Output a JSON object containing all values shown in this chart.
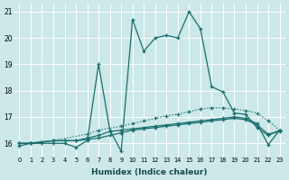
{
  "xlabel": "Humidex (Indice chaleur)",
  "background_color": "#cce8e8",
  "grid_color": "#ffffff",
  "line_color": "#1a6e6e",
  "xlim": [
    -0.5,
    23.5
  ],
  "ylim": [
    15.5,
    21.3
  ],
  "yticks": [
    16,
    17,
    18,
    19,
    20,
    21
  ],
  "xticks": [
    0,
    1,
    2,
    3,
    4,
    5,
    6,
    7,
    8,
    9,
    10,
    11,
    12,
    13,
    14,
    15,
    16,
    17,
    18,
    19,
    20,
    21,
    22,
    23
  ],
  "series": [
    {
      "x": [
        0,
        1,
        2,
        3,
        4,
        5,
        6,
        7,
        8,
        9,
        10,
        11,
        12,
        13,
        14,
        15,
        16,
        17,
        18,
        19,
        20,
        21,
        22,
        23
      ],
      "y": [
        16.0,
        16.0,
        16.0,
        16.0,
        16.0,
        15.85,
        16.1,
        19.0,
        16.5,
        15.7,
        20.7,
        19.5,
        20.0,
        20.1,
        20.0,
        21.0,
        20.35,
        18.15,
        17.95,
        17.15,
        17.1,
        16.6,
        16.3,
        16.5
      ],
      "style": "-",
      "marker": "+"
    },
    {
      "x": [
        0,
        3,
        6,
        7,
        9,
        10,
        11,
        12,
        13,
        14,
        15,
        16,
        17,
        18,
        19,
        20,
        21,
        22,
        23
      ],
      "y": [
        16.0,
        16.1,
        16.35,
        16.5,
        16.65,
        16.75,
        16.85,
        16.95,
        17.05,
        17.1,
        17.2,
        17.3,
        17.35,
        17.35,
        17.3,
        17.25,
        17.15,
        16.85,
        16.5
      ],
      "style": ":",
      "marker": "+"
    },
    {
      "x": [
        0,
        1,
        2,
        3,
        4,
        5,
        6,
        7,
        8,
        9,
        10,
        11,
        12,
        13,
        14,
        15,
        16,
        17,
        18,
        19,
        20,
        21,
        22,
        23
      ],
      "y": [
        16.0,
        16.0,
        16.05,
        16.1,
        16.1,
        16.1,
        16.15,
        16.2,
        16.3,
        16.4,
        16.5,
        16.55,
        16.6,
        16.65,
        16.7,
        16.75,
        16.8,
        16.85,
        16.9,
        16.95,
        16.9,
        16.7,
        16.35,
        16.45
      ],
      "style": "-",
      "marker": "+"
    },
    {
      "x": [
        0,
        1,
        2,
        3,
        4,
        5,
        6,
        7,
        8,
        9,
        10,
        11,
        12,
        13,
        14,
        15,
        16,
        17,
        18,
        19,
        20,
        21,
        22,
        23
      ],
      "y": [
        15.9,
        16.0,
        16.05,
        16.1,
        16.1,
        16.1,
        16.2,
        16.3,
        16.45,
        16.5,
        16.55,
        16.6,
        16.65,
        16.7,
        16.75,
        16.8,
        16.85,
        16.9,
        16.95,
        17.0,
        16.95,
        16.75,
        15.95,
        16.5
      ],
      "style": "-",
      "marker": "+"
    }
  ]
}
